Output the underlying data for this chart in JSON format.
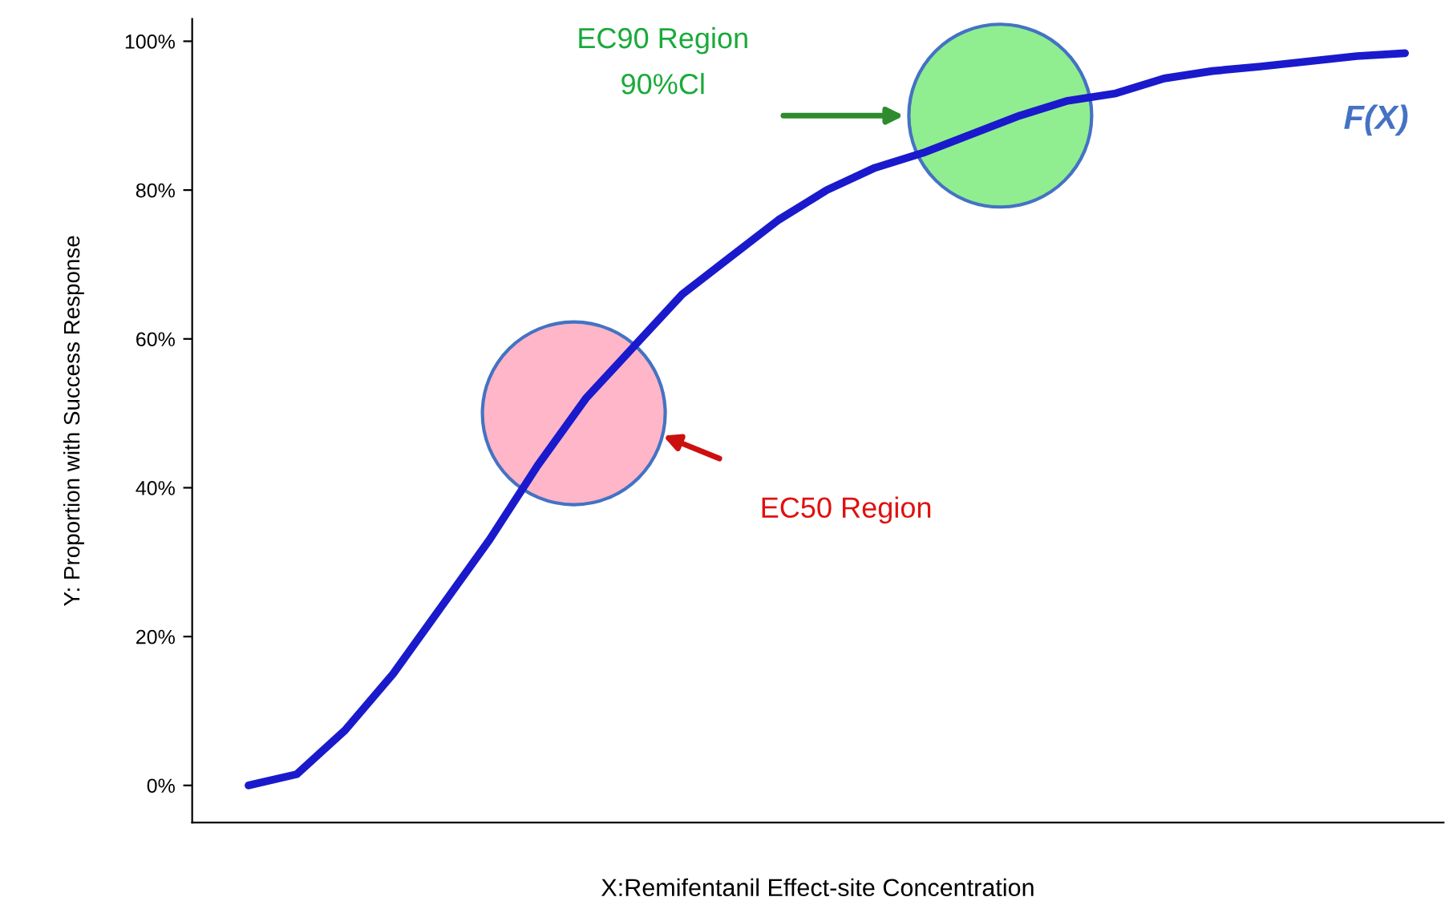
{
  "chart_data": {
    "type": "line",
    "xlabel": "X:Remifentanil Effect-site Concentration",
    "ylabel": "Y: Proportion with Success Response",
    "categories": [
      null,
      null,
      null,
      null,
      null,
      null,
      null,
      null,
      null,
      null,
      null,
      null,
      null,
      null,
      null,
      null,
      null,
      null,
      null,
      null,
      null,
      null,
      null,
      null,
      null
    ],
    "series": [
      {
        "name": "F(X)",
        "color": "#1a1acc",
        "values": [
          0,
          1.5,
          7.4,
          15,
          24,
          33,
          43,
          52,
          59,
          66,
          71,
          76,
          80,
          83,
          85,
          87.5,
          90,
          92,
          93,
          95,
          96,
          96.6,
          97.3,
          98,
          98.4
        ]
      }
    ],
    "ylim": [
      -5,
      103
    ],
    "yticks": [
      {
        "value": 0,
        "label": "0%"
      },
      {
        "value": 20,
        "label": "20%"
      },
      {
        "value": 40,
        "label": "40%"
      },
      {
        "value": 60,
        "label": "60%"
      },
      {
        "value": 80,
        "label": "80%"
      },
      {
        "value": 100,
        "label": "100%"
      }
    ],
    "annotations": [
      "EC90 Region\n90%Cl",
      "EC50 Region"
    ],
    "grid": false,
    "marker": "none",
    "line_style": "solid",
    "tick_labels": "y"
  }
}
